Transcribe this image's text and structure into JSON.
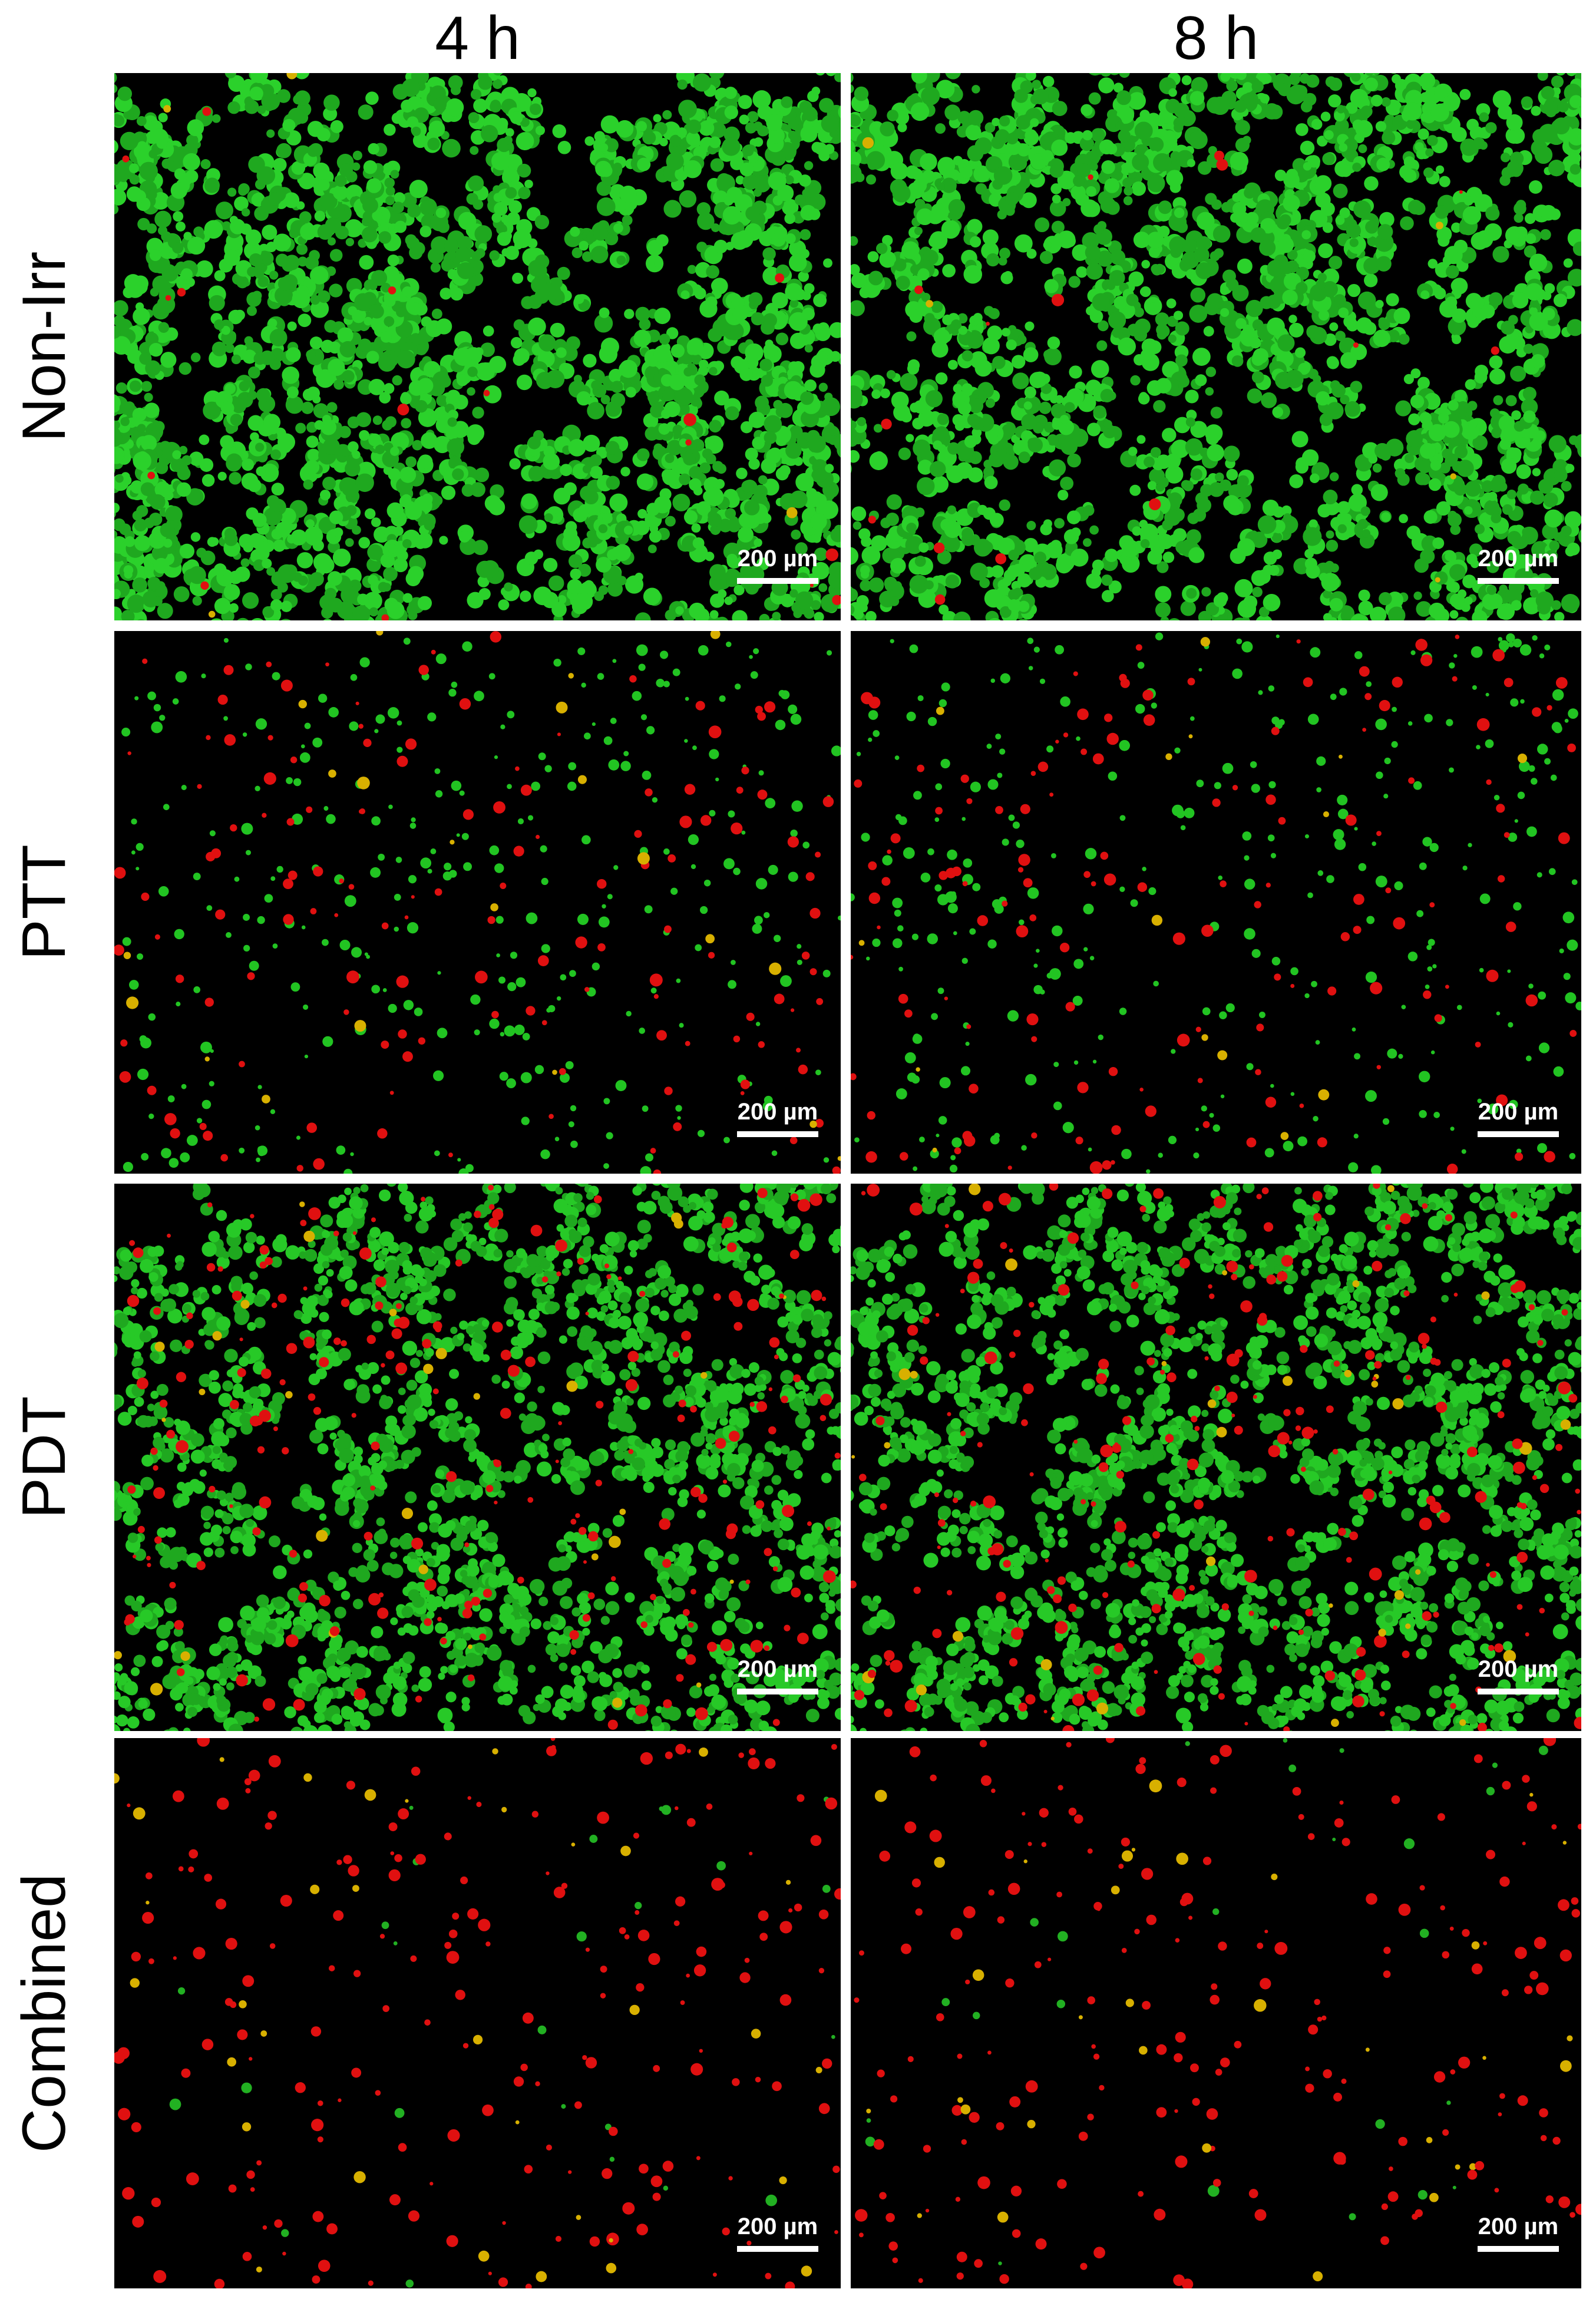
{
  "columns": [
    "4 h",
    "8 h"
  ],
  "rows": [
    "Non-Irr",
    "PTT",
    "PDT",
    "Combined"
  ],
  "panels": [
    [
      {
        "scale_bar": "200 µm"
      },
      {
        "scale_bar": "200 µm"
      }
    ],
    [
      {
        "scale_bar": "200 µm"
      },
      {
        "scale_bar": "200 µm"
      }
    ],
    [
      {
        "scale_bar": "200 µm"
      },
      {
        "scale_bar": "200 µm"
      }
    ],
    [
      {
        "scale_bar": "200 µm"
      },
      {
        "scale_bar": "200 µm"
      }
    ]
  ]
}
